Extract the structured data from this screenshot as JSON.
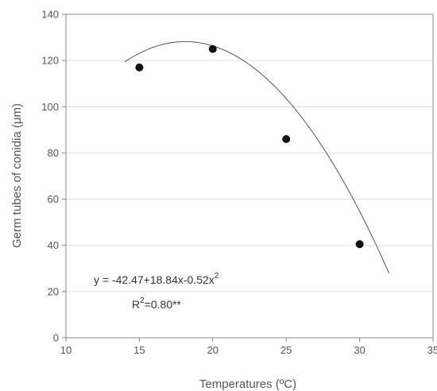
{
  "chart_data": {
    "type": "scatter",
    "title": "",
    "xlabel": "Temperatures (ºC)",
    "ylabel": "Germ tubes of conidia (μm)",
    "xlim": [
      10,
      35
    ],
    "ylim": [
      0,
      140
    ],
    "xticks": [
      10,
      15,
      20,
      25,
      30,
      35
    ],
    "yticks": [
      0,
      20,
      40,
      60,
      80,
      100,
      120,
      140
    ],
    "grid": "horizontal",
    "legend": "none",
    "series": [
      {
        "type": "scatter",
        "x": [
          15,
          20,
          25,
          30
        ],
        "y": [
          117,
          125,
          86,
          40.5
        ]
      }
    ],
    "trendline": {
      "type": "polynomial",
      "intercept": -42.47,
      "b1": 18.84,
      "b2": -0.52,
      "x_range": [
        14,
        32
      ]
    },
    "annotations": {
      "equation_main": "y = -42.47+18.84x-0.52x",
      "equation_exp": "2",
      "r2_prefix": "R",
      "r2_exp": "2",
      "r2_value": "=0.80**"
    },
    "colors": {
      "points": "#111111",
      "curve": "#555555",
      "grid": "#dddddd",
      "axis": "#888888"
    }
  }
}
